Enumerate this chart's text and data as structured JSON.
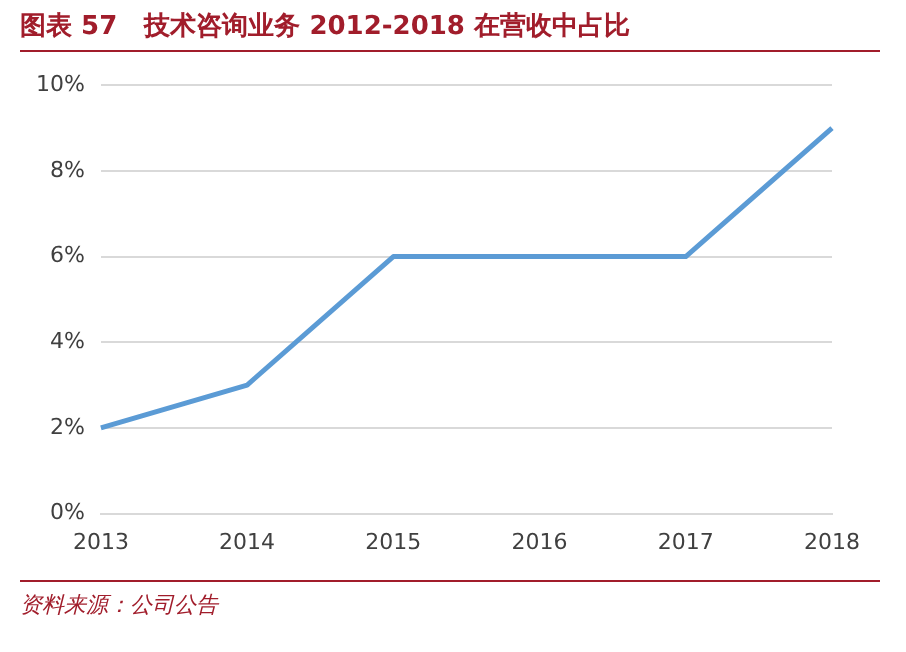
{
  "chart_data": {
    "type": "line",
    "title": "图表 57   技术咨询业务 2012-2018 在营收中占比",
    "categories": [
      "2013",
      "2014",
      "2015",
      "2016",
      "2017",
      "2018"
    ],
    "series": [
      {
        "color": "#5b9bd5",
        "values": [
          2,
          3,
          6,
          6,
          6,
          9
        ]
      }
    ],
    "ylim": [
      0,
      10
    ],
    "yticks": [
      {
        "value": 0,
        "label": "0%"
      },
      {
        "value": 2,
        "label": "2%"
      },
      {
        "value": 4,
        "label": "4%"
      },
      {
        "value": 6,
        "label": "6%"
      },
      {
        "value": 8,
        "label": "8%"
      },
      {
        "value": 10,
        "label": "10%"
      }
    ],
    "grid": "y",
    "legend": false,
    "marker": "none",
    "line_style": "solid",
    "annotations": [
      "资料来源：公司公告"
    ]
  }
}
